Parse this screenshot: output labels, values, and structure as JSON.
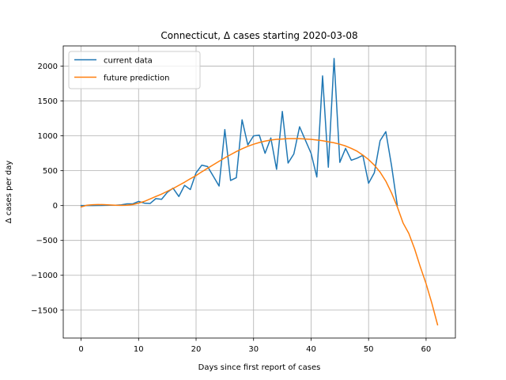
{
  "chart_data": {
    "type": "line",
    "title": "Connecticut, Δ cases starting 2020-03-08",
    "xlabel": "Days since first report of cases",
    "ylabel": "Δ cases per day",
    "xlim": [
      -3.1,
      65.1
    ],
    "ylim": [
      -1900,
      2290
    ],
    "xticks": [
      0,
      10,
      20,
      30,
      40,
      50,
      60
    ],
    "xtick_labels": [
      "0",
      "10",
      "20",
      "30",
      "40",
      "50",
      "60"
    ],
    "yticks": [
      -1500,
      -1000,
      -500,
      0,
      500,
      1000,
      1500,
      2000
    ],
    "ytick_labels": [
      "−1500",
      "−1000",
      "−500",
      "0",
      "500",
      "1000",
      "1500",
      "2000"
    ],
    "grid": true,
    "legend_position": "top-left",
    "series": [
      {
        "name": "current data",
        "color": "#1f77b4",
        "x": [
          0,
          1,
          2,
          3,
          4,
          5,
          6,
          7,
          8,
          9,
          10,
          11,
          12,
          13,
          14,
          15,
          16,
          17,
          18,
          19,
          20,
          21,
          22,
          23,
          24,
          25,
          26,
          27,
          28,
          29,
          30,
          31,
          32,
          33,
          34,
          35,
          36,
          37,
          38,
          39,
          40,
          41,
          42,
          43,
          44,
          45,
          46,
          47,
          48,
          49,
          50,
          51,
          52,
          53,
          54,
          55
        ],
        "y": [
          0,
          0,
          1,
          2,
          3,
          5,
          5,
          10,
          25,
          25,
          60,
          35,
          30,
          100,
          90,
          190,
          250,
          130,
          290,
          230,
          470,
          580,
          560,
          420,
          280,
          1090,
          360,
          400,
          1230,
          870,
          1000,
          1010,
          750,
          970,
          520,
          1350,
          610,
          740,
          1130,
          940,
          750,
          410,
          1860,
          550,
          2110,
          620,
          820,
          650,
          680,
          720,
          320,
          470,
          930,
          1060,
          570,
          0
        ]
      },
      {
        "name": "future prediction",
        "color": "#ff7f0e",
        "x": [
          0,
          1,
          2,
          3,
          4,
          5,
          6,
          7,
          8,
          9,
          10,
          11,
          12,
          13,
          14,
          15,
          16,
          17,
          18,
          19,
          20,
          21,
          22,
          23,
          24,
          25,
          26,
          27,
          28,
          29,
          30,
          31,
          32,
          33,
          34,
          35,
          36,
          37,
          38,
          39,
          40,
          41,
          42,
          43,
          44,
          45,
          46,
          47,
          48,
          49,
          50,
          51,
          52,
          53,
          54,
          55,
          56,
          57,
          58,
          59,
          60,
          61,
          62
        ],
        "y": [
          -20,
          5,
          12,
          15,
          13,
          9,
          5,
          3,
          5,
          15,
          35,
          60,
          95,
          130,
          165,
          205,
          245,
          290,
          335,
          385,
          430,
          485,
          535,
          585,
          635,
          685,
          730,
          775,
          815,
          850,
          880,
          905,
          925,
          940,
          950,
          955,
          960,
          960,
          960,
          955,
          950,
          940,
          930,
          915,
          900,
          880,
          855,
          820,
          780,
          725,
          660,
          580,
          480,
          350,
          180,
          -20,
          -250,
          -400,
          -620,
          -880,
          -1120,
          -1400,
          -1710
        ]
      }
    ]
  }
}
